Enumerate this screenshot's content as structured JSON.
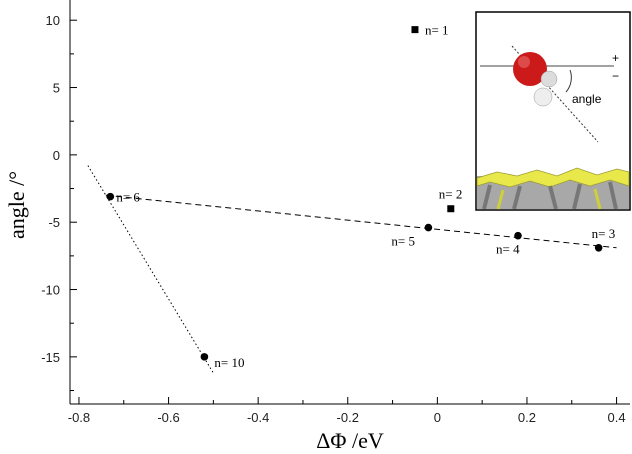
{
  "chart_data": {
    "type": "scatter",
    "xlabel": "ΔΦ /eV",
    "ylabel": "angle /°",
    "xlim": [
      -0.82,
      0.43
    ],
    "ylim": [
      -18.5,
      11.5
    ],
    "xticks": [
      -0.8,
      -0.6,
      -0.4,
      -0.2,
      0,
      0.2,
      0.4
    ],
    "xtick_labels": [
      "-0.8",
      "-0.6",
      "-0.4",
      "-0.2",
      "0",
      "0.2",
      "0.4"
    ],
    "yticks": [
      10,
      5,
      0,
      -5,
      -10,
      -15
    ],
    "ytick_labels": [
      "10",
      "5",
      "0",
      "-5",
      "-10",
      "-15"
    ],
    "grid": false,
    "points": [
      {
        "label": "n= 1",
        "x": -0.05,
        "y": 9.3,
        "marker": "square"
      },
      {
        "label": "n= 2",
        "x": 0.03,
        "y": -4.0,
        "marker": "square"
      },
      {
        "label": "n= 3",
        "x": 0.36,
        "y": -6.9,
        "marker": "circle"
      },
      {
        "label": "n= 4",
        "x": 0.18,
        "y": -6.0,
        "marker": "circle"
      },
      {
        "label": "n= 5",
        "x": -0.02,
        "y": -5.4,
        "marker": "circle"
      },
      {
        "label": "n= 6",
        "x": -0.73,
        "y": -3.1,
        "marker": "circle"
      },
      {
        "label": "n= 10",
        "x": -0.52,
        "y": -15.0,
        "marker": "circle"
      }
    ],
    "fit_lines": [
      {
        "style": "dashed",
        "x": [
          -0.74,
          0.4
        ],
        "y": [
          -3.0,
          -6.9
        ]
      },
      {
        "style": "dotted",
        "x": [
          -0.78,
          -0.5
        ],
        "y": [
          -0.8,
          -16.2
        ]
      }
    ]
  },
  "inset": {
    "angle_label": "angle",
    "plus_sign": "+",
    "minus_sign": "−",
    "colors": {
      "oxygen": "#cc1a1a",
      "hydrogen": "#e6e6e6",
      "surface_top": "#e8e84a",
      "surface_bottom": "#9a9a9a"
    }
  }
}
